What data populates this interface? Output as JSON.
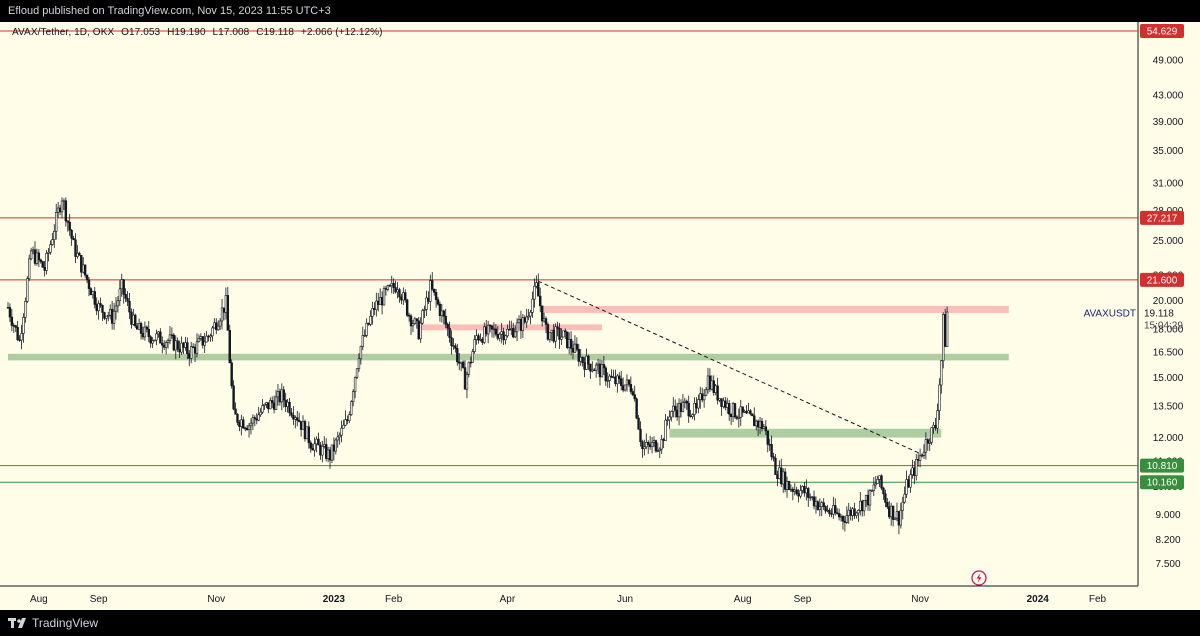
{
  "header": {
    "published_text": "Efloud published on TradingView.com, Nov 15, 2023 11:55 UTC+3"
  },
  "symbol_line": {
    "name": "AVAX/Tether, 1D, OKX",
    "open": "O17.053",
    "high": "H19.190",
    "low": "L17.008",
    "close": "C19.118",
    "change": "+2.066 (+12.12%)"
  },
  "footer": {
    "brand": "TradingView"
  },
  "colors": {
    "background": "#fffde7",
    "candle": "#131722",
    "resistance_line": "#d32f2f",
    "support_line": "#388e3c",
    "red_zone": "#f8b7b3",
    "green_zone": "#a5c99a"
  },
  "icons": {
    "lightning": "lightning-icon",
    "logo": "tradingview-logo-icon"
  },
  "chart_data": {
    "type": "candlestick",
    "title": "AVAX/Tether, 1D, OKX",
    "price_axis_unit": "USDT",
    "scale": "log",
    "grid": false,
    "ylim": [
      6.9,
      56.5
    ],
    "y_ticks": [
      7.5,
      8.2,
      9.0,
      10.0,
      11.0,
      12.0,
      13.5,
      15.0,
      16.5,
      18.0,
      20.0,
      22.0,
      25.0,
      28.0,
      31.0,
      35.0,
      39.0,
      43.0,
      49.0
    ],
    "y_tick_labels": [
      "7.500",
      "8.200",
      "9.000",
      "10.000",
      "11.000",
      "12.000",
      "13.500",
      "15.000",
      "16.500",
      "18.000",
      "20.000",
      "22.000",
      "25.000",
      "28.000",
      "31.000",
      "35.000",
      "39.000",
      "43.000",
      "49.000"
    ],
    "x_range": [
      "2022-07-16",
      "2024-02-22"
    ],
    "x_ticks": [
      {
        "date": "2022-08-01",
        "label": "Aug",
        "bold": false
      },
      {
        "date": "2022-09-01",
        "label": "Sep",
        "bold": false
      },
      {
        "date": "2022-11-01",
        "label": "Nov",
        "bold": false
      },
      {
        "date": "2023-01-01",
        "label": "2023",
        "bold": true
      },
      {
        "date": "2023-02-01",
        "label": "Feb",
        "bold": false
      },
      {
        "date": "2023-04-01",
        "label": "Apr",
        "bold": false
      },
      {
        "date": "2023-06-01",
        "label": "Jun",
        "bold": false
      },
      {
        "date": "2023-08-01",
        "label": "Aug",
        "bold": false
      },
      {
        "date": "2023-09-01",
        "label": "Sep",
        "bold": false
      },
      {
        "date": "2023-11-01",
        "label": "Nov",
        "bold": false
      },
      {
        "date": "2024-01-01",
        "label": "2024",
        "bold": true
      },
      {
        "date": "2024-02-01",
        "label": "Feb",
        "bold": false
      }
    ],
    "series": [
      {
        "name": "AVAXUSDT",
        "price_points": [
          [
            "2022-07-16",
            19.5
          ],
          [
            "2022-07-22",
            17.2
          ],
          [
            "2022-07-28",
            24.0
          ],
          [
            "2022-08-04",
            22.5
          ],
          [
            "2022-08-08",
            25.5
          ],
          [
            "2022-08-13",
            29.5
          ],
          [
            "2022-08-19",
            24.5
          ],
          [
            "2022-08-25",
            22.0
          ],
          [
            "2022-09-01",
            19.5
          ],
          [
            "2022-09-08",
            18.8
          ],
          [
            "2022-09-13",
            21.0
          ],
          [
            "2022-09-20",
            18.0
          ],
          [
            "2022-09-28",
            17.5
          ],
          [
            "2022-10-08",
            17.2
          ],
          [
            "2022-10-18",
            16.5
          ],
          [
            "2022-10-28",
            17.5
          ],
          [
            "2022-11-06",
            19.8
          ],
          [
            "2022-11-10",
            13.0
          ],
          [
            "2022-11-18",
            12.6
          ],
          [
            "2022-11-26",
            13.4
          ],
          [
            "2022-12-05",
            14.0
          ],
          [
            "2022-12-13",
            13.0
          ],
          [
            "2022-12-20",
            11.8
          ],
          [
            "2022-12-30",
            11.2
          ],
          [
            "2023-01-08",
            12.8
          ],
          [
            "2023-01-14",
            16.5
          ],
          [
            "2023-01-22",
            19.5
          ],
          [
            "2023-01-28",
            20.5
          ],
          [
            "2023-02-03",
            21.3
          ],
          [
            "2023-02-09",
            19.0
          ],
          [
            "2023-02-14",
            17.8
          ],
          [
            "2023-02-20",
            21.0
          ],
          [
            "2023-02-26",
            19.0
          ],
          [
            "2023-03-04",
            17.0
          ],
          [
            "2023-03-10",
            14.8
          ],
          [
            "2023-03-16",
            17.5
          ],
          [
            "2023-03-24",
            17.8
          ],
          [
            "2023-04-02",
            17.8
          ],
          [
            "2023-04-10",
            18.5
          ],
          [
            "2023-04-16",
            21.0
          ],
          [
            "2023-04-21",
            17.8
          ],
          [
            "2023-04-30",
            17.5
          ],
          [
            "2023-05-10",
            16.0
          ],
          [
            "2023-05-18",
            15.5
          ],
          [
            "2023-05-26",
            14.8
          ],
          [
            "2023-06-05",
            14.5
          ],
          [
            "2023-06-10",
            11.5
          ],
          [
            "2023-06-20",
            11.8
          ],
          [
            "2023-06-24",
            13.2
          ],
          [
            "2023-07-02",
            13.5
          ],
          [
            "2023-07-08",
            13.2
          ],
          [
            "2023-07-14",
            15.0
          ],
          [
            "2023-07-18",
            14.2
          ],
          [
            "2023-07-26",
            13.3
          ],
          [
            "2023-08-04",
            12.9
          ],
          [
            "2023-08-12",
            12.5
          ],
          [
            "2023-08-18",
            10.7
          ],
          [
            "2023-08-25",
            10.0
          ],
          [
            "2023-09-02",
            9.8
          ],
          [
            "2023-09-12",
            9.2
          ],
          [
            "2023-09-22",
            8.9
          ],
          [
            "2023-09-30",
            9.3
          ],
          [
            "2023-10-06",
            9.6
          ],
          [
            "2023-10-10",
            10.3
          ],
          [
            "2023-10-16",
            9.2
          ],
          [
            "2023-10-21",
            8.9
          ],
          [
            "2023-10-25",
            10.0
          ],
          [
            "2023-10-31",
            11.0
          ],
          [
            "2023-11-05",
            12.0
          ],
          [
            "2023-11-09",
            12.5
          ],
          [
            "2023-11-12",
            16.0
          ],
          [
            "2023-11-13",
            18.5
          ],
          [
            "2023-11-14",
            17.2
          ],
          [
            "2023-11-15",
            19.118
          ]
        ]
      }
    ],
    "horizontal_levels": [
      {
        "price": 54.629,
        "label": "54.629",
        "color": "#d32f2f"
      },
      {
        "price": 27.217,
        "label": "27.217",
        "color": "#d32f2f"
      },
      {
        "price": 21.6,
        "label": "21.600",
        "color": "#d32f2f"
      },
      {
        "price": 10.81,
        "label": "10.810",
        "color": "#388e3c"
      },
      {
        "price": 10.16,
        "label": "10.160",
        "color": "#388e3c"
      }
    ],
    "zones": [
      {
        "type": "resistance",
        "start": "2023-04-19",
        "end": "2023-12-17",
        "price_low": 19.1,
        "price_high": 19.6
      },
      {
        "type": "resistance",
        "start": "2023-02-15",
        "end": "2023-05-20",
        "price_low": 17.9,
        "price_high": 18.3
      },
      {
        "type": "support",
        "start": "2022-07-16",
        "end": "2023-12-17",
        "price_low": 16.0,
        "price_high": 16.4
      },
      {
        "type": "support",
        "start": "2023-06-24",
        "end": "2023-11-12",
        "price_low": 12.0,
        "price_high": 12.4
      }
    ],
    "trendline": {
      "start": [
        "2023-04-17",
        21.5
      ],
      "end": [
        "2023-11-04",
        11.2
      ],
      "style": "dashed"
    },
    "last_price": {
      "symbol": "AVAXUSDT",
      "price": "19.118",
      "countdown": "15:04:29"
    }
  }
}
